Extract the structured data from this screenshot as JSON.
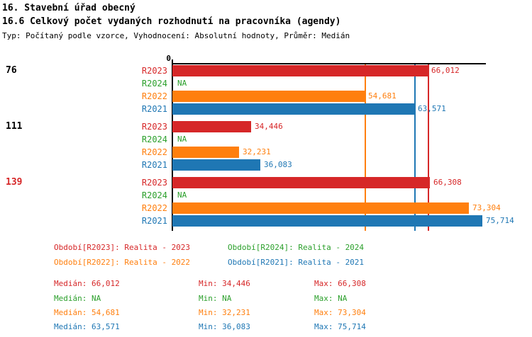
{
  "header": {
    "title1": "16. Stavební úřad obecný",
    "title2": "16.6 Celkový počet vydaných rozhodnutí na pracovníka (agendy)",
    "subtitle": "Typ: Počítaný podle vzorce, Vyhodnocení: Absolutní hodnoty, Průměr: Medián"
  },
  "colors": {
    "R2023": "#d62728",
    "R2024": "#2ca02c",
    "R2022": "#ff7f0e",
    "R2021": "#1f77b4",
    "axis": "#000000",
    "group_label_default": "#000000",
    "group_label_highlight": "#d62728"
  },
  "chart_data": {
    "type": "bar",
    "orientation": "horizontal",
    "x_axis": {
      "origin_tick_label": "0",
      "xlim_effective": [
        20.38,
        76.3
      ],
      "grid": false
    },
    "series_order": [
      "R2023",
      "R2024",
      "R2022",
      "R2021"
    ],
    "na_text": "NA",
    "groups": [
      {
        "label": "76",
        "label_color": "#000000",
        "bars": [
          {
            "series": "R2023",
            "value": 66.012,
            "label": "66,012"
          },
          {
            "series": "R2024",
            "value": null,
            "label": "NA"
          },
          {
            "series": "R2022",
            "value": 54.681,
            "label": "54,681"
          },
          {
            "series": "R2021",
            "value": 63.571,
            "label": "63,571"
          }
        ]
      },
      {
        "label": "111",
        "label_color": "#000000",
        "bars": [
          {
            "series": "R2023",
            "value": 34.446,
            "label": "34,446"
          },
          {
            "series": "R2024",
            "value": null,
            "label": "NA"
          },
          {
            "series": "R2022",
            "value": 32.231,
            "label": "32,231"
          },
          {
            "series": "R2021",
            "value": 36.083,
            "label": "36,083"
          }
        ]
      },
      {
        "label": "139",
        "label_color": "#d62728",
        "bars": [
          {
            "series": "R2023",
            "value": 66.308,
            "label": "66,308"
          },
          {
            "series": "R2024",
            "value": null,
            "label": "NA"
          },
          {
            "series": "R2022",
            "value": 73.304,
            "label": "73,304"
          },
          {
            "series": "R2021",
            "value": 75.714,
            "label": "75,714"
          }
        ]
      }
    ],
    "median_lines": [
      {
        "series": "R2023",
        "value": 66.012
      },
      {
        "series": "R2022",
        "value": 54.681
      },
      {
        "series": "R2021",
        "value": 63.571
      }
    ]
  },
  "legend": [
    {
      "series": "R2023",
      "label": "Období[R2023]: Realita - 2023"
    },
    {
      "series": "R2024",
      "label": "Období[R2024]: Realita - 2024"
    },
    {
      "series": "R2022",
      "label": "Období[R2022]: Realita - 2022"
    },
    {
      "series": "R2021",
      "label": "Období[R2021]: Realita - 2021"
    }
  ],
  "stats_labels": {
    "median": "Medián",
    "min": "Min",
    "max": "Max"
  },
  "stats": [
    {
      "series": "R2023",
      "median": "66,012",
      "min": "34,446",
      "max": "66,308"
    },
    {
      "series": "R2024",
      "median": "NA",
      "min": "NA",
      "max": "NA"
    },
    {
      "series": "R2022",
      "median": "54,681",
      "min": "32,231",
      "max": "73,304"
    },
    {
      "series": "R2021",
      "median": "63,571",
      "min": "36,083",
      "max": "75,714"
    }
  ]
}
